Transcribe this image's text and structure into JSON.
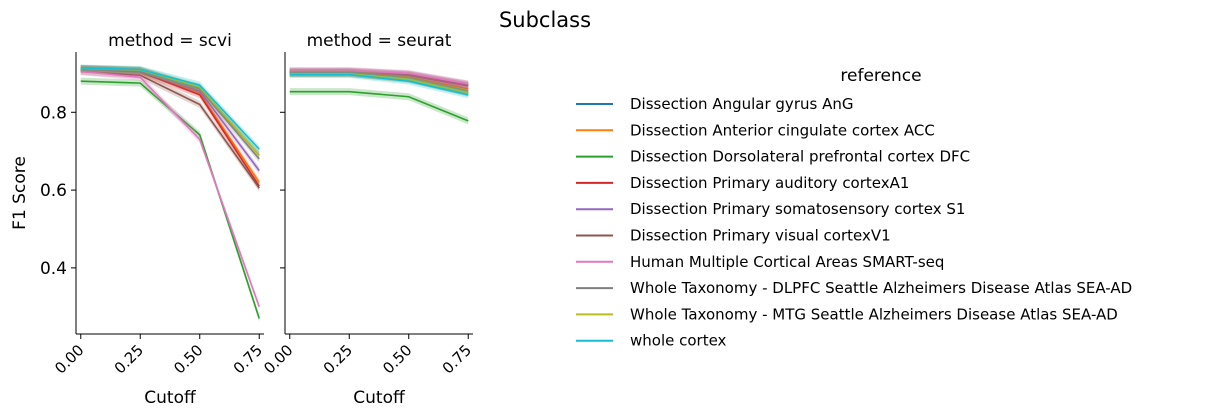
{
  "figure": {
    "title": "Subclass"
  },
  "legend": {
    "title": "reference",
    "placement": "right"
  },
  "chart_data": [
    {
      "type": "line",
      "title": "method = scvi",
      "xlabel": "Cutoff",
      "ylabel": "F1 Score",
      "x": [
        0.0,
        0.25,
        0.5,
        0.75
      ],
      "x_ticks": [
        "0.00",
        "0.25",
        "0.50",
        "0.75"
      ],
      "y_ticks": [
        "0.4",
        "0.6",
        "0.8"
      ],
      "xlim": [
        -0.02,
        0.77
      ],
      "ylim": [
        0.23,
        0.955
      ],
      "series": [
        {
          "name": "Dissection Angular gyrus AnG",
          "color": "#1f77b4",
          "values": [
            0.912,
            0.907,
            0.862,
            0.69
          ]
        },
        {
          "name": "Dissection Anterior cingulate cortex ACC",
          "color": "#ff7f0e",
          "values": [
            0.911,
            0.906,
            0.85,
            0.62
          ]
        },
        {
          "name": "Dissection Dorsolateral prefrontal cortex DFC",
          "color": "#2ca02c",
          "values": [
            0.88,
            0.875,
            0.742,
            0.27
          ]
        },
        {
          "name": "Dissection Primary auditory cortexA1",
          "color": "#d62728",
          "values": [
            0.91,
            0.904,
            0.845,
            0.61
          ]
        },
        {
          "name": "Dissection Primary somatosensory cortex S1",
          "color": "#9467bd",
          "values": [
            0.912,
            0.907,
            0.855,
            0.65
          ]
        },
        {
          "name": "Dissection Primary visual cortexV1",
          "color": "#8c564b",
          "values": [
            0.905,
            0.895,
            0.82,
            0.605
          ]
        },
        {
          "name": "Human Multiple Cortical Areas SMART-seq",
          "color": "#e377c2",
          "values": [
            0.905,
            0.89,
            0.73,
            0.3
          ]
        },
        {
          "name": "Whole Taxonomy - DLPFC Seattle Alzheimers Disease Atlas SEA-AD",
          "color": "#7f7f7f",
          "values": [
            0.913,
            0.908,
            0.86,
            0.68
          ]
        },
        {
          "name": "Whole Taxonomy - MTG Seattle Alzheimers Disease Atlas SEA-AD",
          "color": "#bcbd22",
          "values": [
            0.913,
            0.909,
            0.865,
            0.69
          ]
        },
        {
          "name": "whole cortex",
          "color": "#17becf",
          "values": [
            0.914,
            0.91,
            0.87,
            0.705
          ]
        }
      ]
    },
    {
      "type": "line",
      "title": "method = seurat",
      "xlabel": "Cutoff",
      "ylabel": "",
      "x": [
        0.0,
        0.25,
        0.5,
        0.75
      ],
      "x_ticks": [
        "0.00",
        "0.25",
        "0.50",
        "0.75"
      ],
      "y_ticks": [
        "0.4",
        "0.6",
        "0.8"
      ],
      "xlim": [
        -0.02,
        0.77
      ],
      "ylim": [
        0.23,
        0.955
      ],
      "series": [
        {
          "name": "Dissection Angular gyrus AnG",
          "color": "#1f77b4",
          "values": [
            0.9,
            0.9,
            0.885,
            0.85
          ]
        },
        {
          "name": "Dissection Anterior cingulate cortex ACC",
          "color": "#ff7f0e",
          "values": [
            0.902,
            0.902,
            0.89,
            0.86
          ]
        },
        {
          "name": "Dissection Dorsolateral prefrontal cortex DFC",
          "color": "#2ca02c",
          "values": [
            0.853,
            0.853,
            0.84,
            0.778
          ]
        },
        {
          "name": "Dissection Primary auditory cortexA1",
          "color": "#d62728",
          "values": [
            0.903,
            0.903,
            0.895,
            0.868
          ]
        },
        {
          "name": "Dissection Primary somatosensory cortex S1",
          "color": "#9467bd",
          "values": [
            0.905,
            0.905,
            0.897,
            0.87
          ]
        },
        {
          "name": "Dissection Primary visual cortexV1",
          "color": "#8c564b",
          "values": [
            0.906,
            0.906,
            0.898,
            0.872
          ]
        },
        {
          "name": "Human Multiple Cortical Areas SMART-seq",
          "color": "#e377c2",
          "values": [
            0.907,
            0.907,
            0.9,
            0.873
          ]
        },
        {
          "name": "Whole Taxonomy - DLPFC Seattle Alzheimers Disease Atlas SEA-AD",
          "color": "#7f7f7f",
          "values": [
            0.9,
            0.9,
            0.888,
            0.855
          ]
        },
        {
          "name": "Whole Taxonomy - MTG Seattle Alzheimers Disease Atlas SEA-AD",
          "color": "#bcbd22",
          "values": [
            0.899,
            0.899,
            0.885,
            0.85
          ]
        },
        {
          "name": "whole cortex",
          "color": "#17becf",
          "values": [
            0.897,
            0.897,
            0.88,
            0.845
          ]
        }
      ]
    }
  ]
}
